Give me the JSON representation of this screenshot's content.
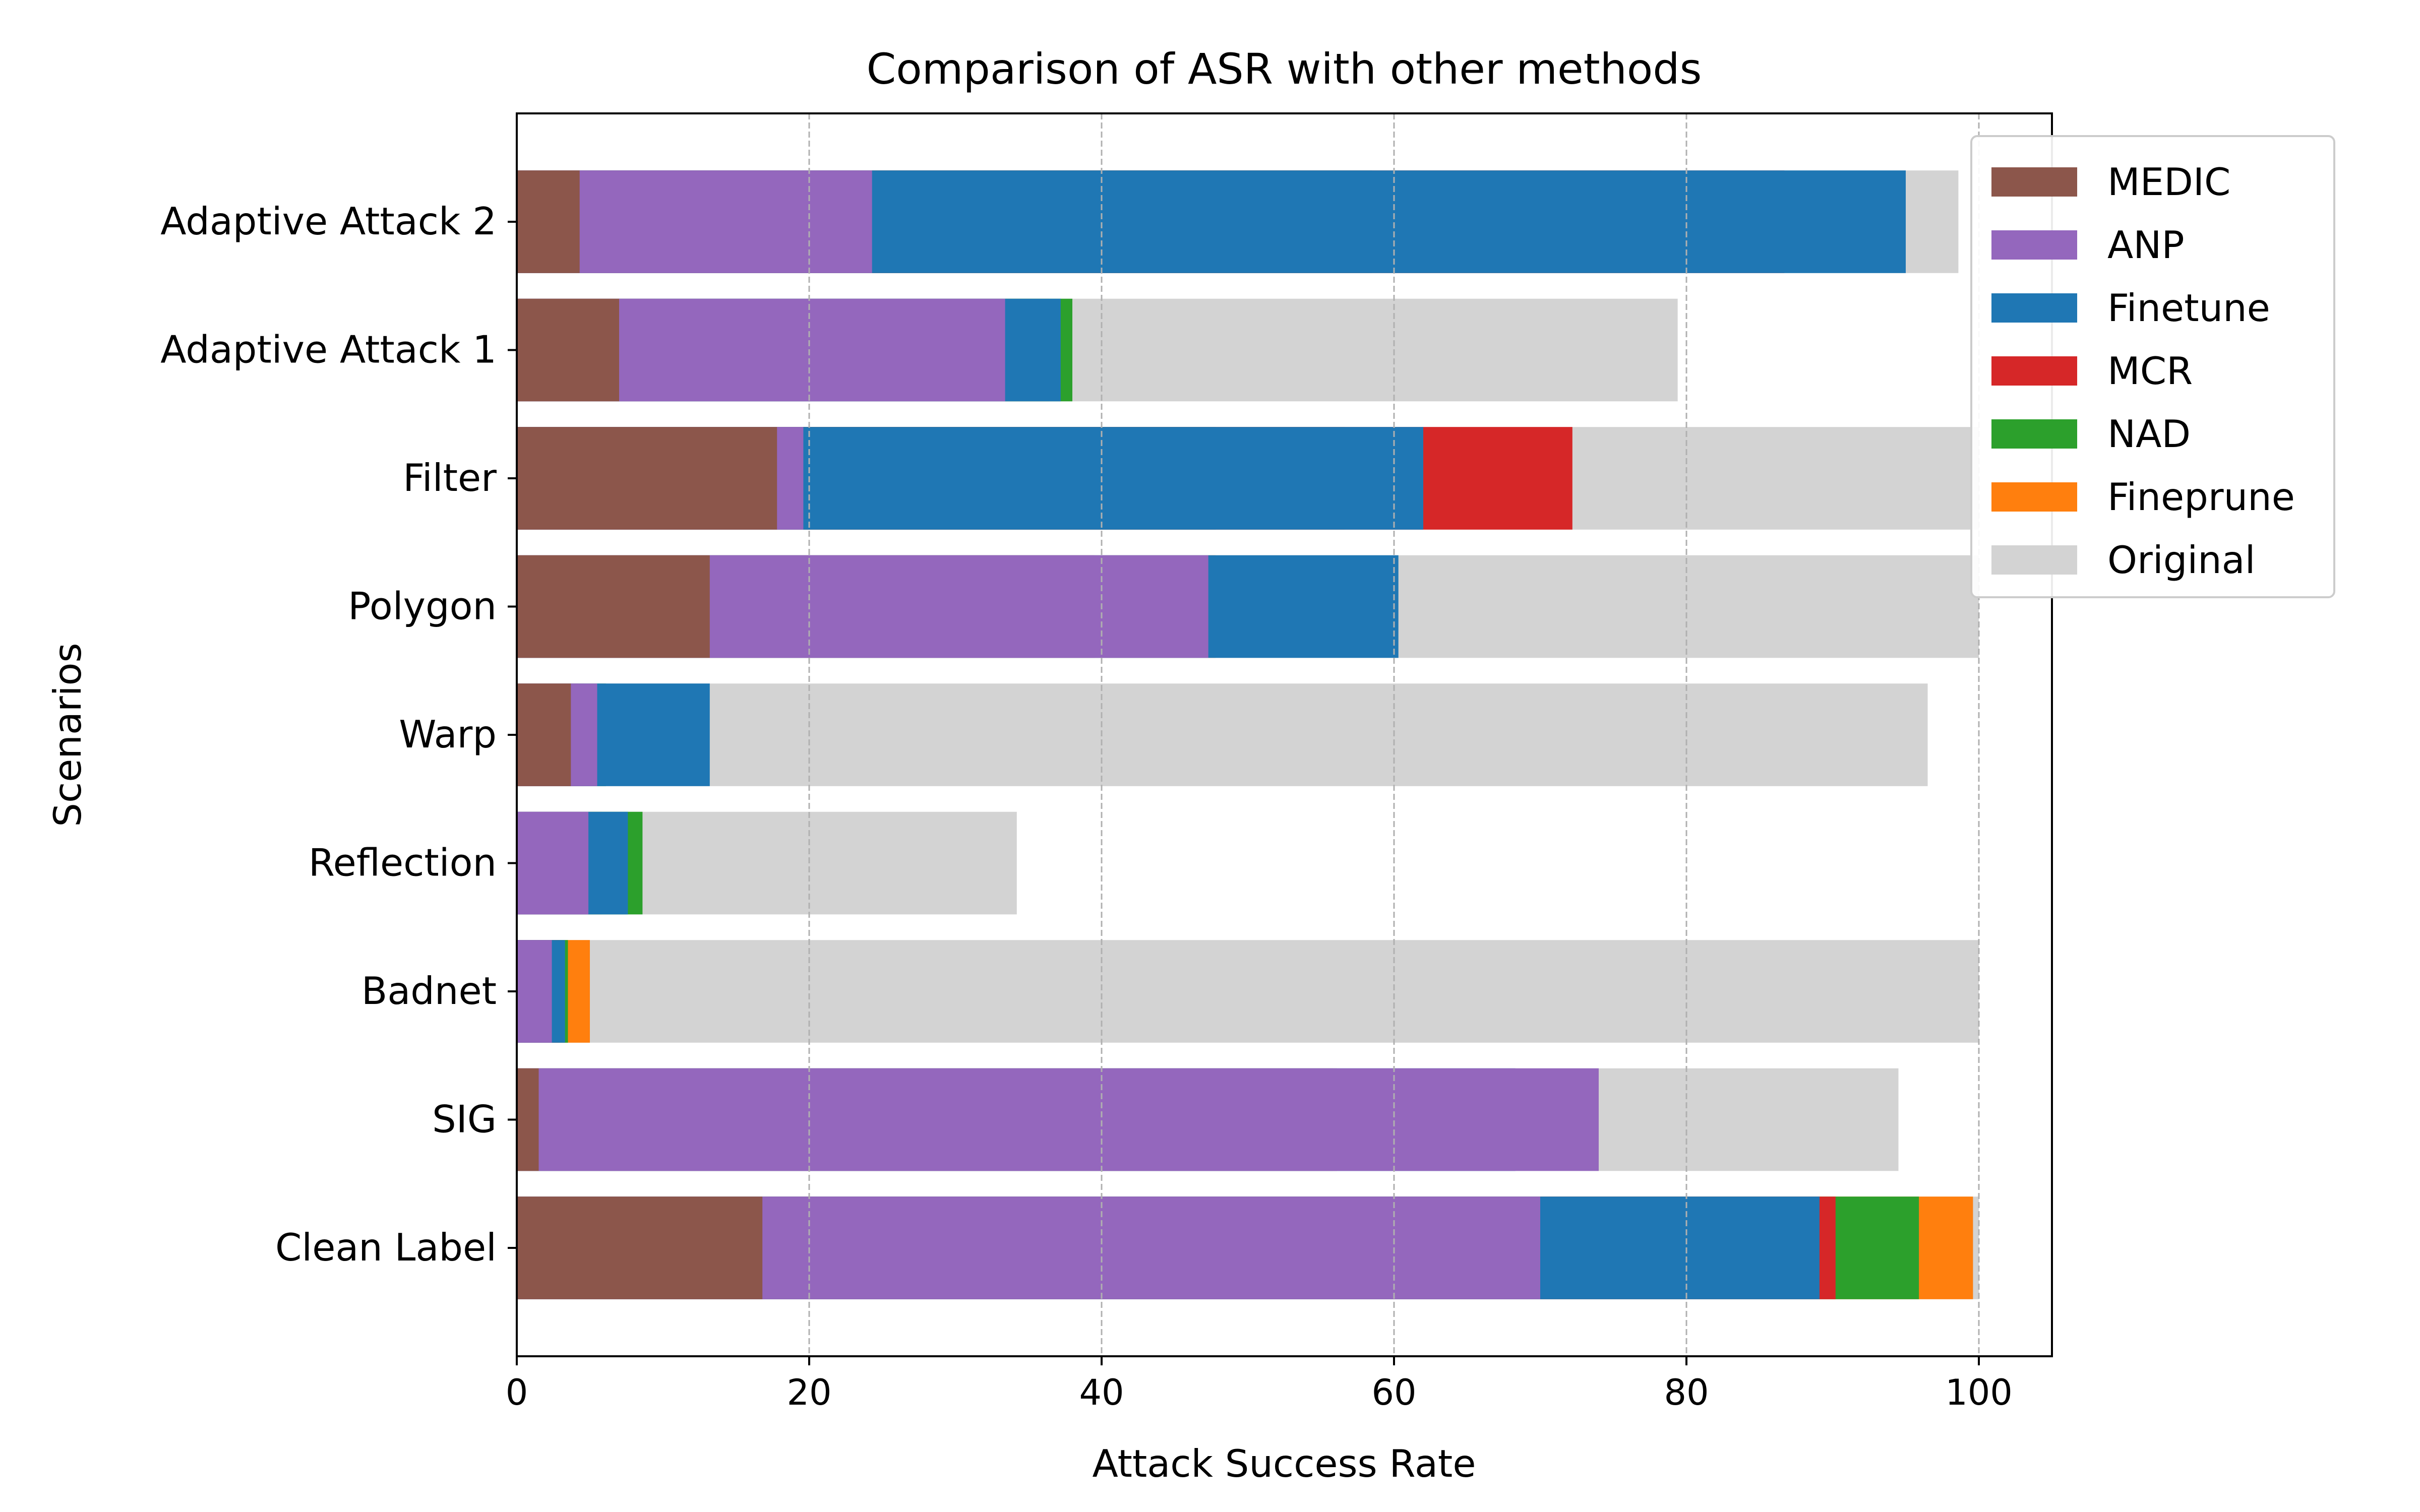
{
  "chart_data": {
    "type": "bar",
    "orientation": "horizontal",
    "stacked": "overlay",
    "title": "Comparison of ASR with other methods",
    "xlabel": "Attack Success Rate",
    "ylabel": "Scenarios",
    "xlim": [
      0,
      105
    ],
    "xticks": [
      0,
      20,
      40,
      60,
      80,
      100
    ],
    "xtick_labels": [
      "0",
      "20",
      "40",
      "60",
      "80",
      "100"
    ],
    "grid": "vertical dashed",
    "legend_position": "top-right",
    "categories": [
      "Clean Label",
      "SIG",
      "Badnet",
      "Reflection",
      "Warp",
      "Polygon",
      "Filter",
      "Adaptive Attack 1",
      "Adaptive Attack 2"
    ],
    "series": [
      {
        "name": "Original",
        "color": "#d3d3d3",
        "values": [
          100,
          94.5,
          100,
          34.2,
          96.5,
          100,
          100,
          79.4,
          98.6
        ]
      },
      {
        "name": "Fineprune",
        "color": "#ff7f0e",
        "values": [
          99.6,
          41.8,
          5.0,
          5.8,
          4.6,
          47.8,
          56.6,
          36.4,
          77.6
        ]
      },
      {
        "name": "NAD",
        "color": "#2ca02c",
        "values": [
          95.9,
          55.8,
          3.5,
          8.6,
          6.1,
          19.5,
          47.8,
          38.0,
          58.5
        ]
      },
      {
        "name": "MCR",
        "color": "#d62728",
        "values": [
          90.2,
          56.1,
          2.9,
          4.8,
          4.2,
          39.5,
          72.2,
          9.4,
          86.7
        ]
      },
      {
        "name": "Finetune",
        "color": "#1f77b4",
        "values": [
          89.1,
          68.3,
          3.3,
          7.6,
          13.2,
          60.3,
          62.0,
          37.2,
          95.0
        ]
      },
      {
        "name": "ANP",
        "color": "#9467bd",
        "values": [
          70.0,
          74.0,
          2.4,
          4.9,
          5.5,
          47.3,
          19.6,
          33.4,
          24.3
        ]
      },
      {
        "name": "MEDIC",
        "color": "#8c564b",
        "values": [
          16.8,
          1.5,
          0.0,
          0.0,
          3.7,
          13.2,
          17.8,
          7.0,
          4.3
        ]
      }
    ],
    "legend_order": [
      "MEDIC",
      "ANP",
      "Finetune",
      "MCR",
      "NAD",
      "Fineprune",
      "Original"
    ]
  }
}
